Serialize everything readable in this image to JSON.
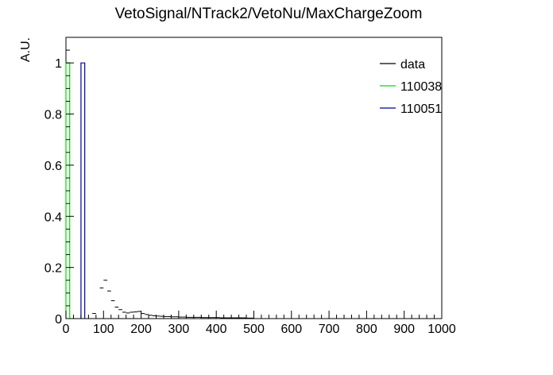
{
  "chart_data": {
    "type": "histogram",
    "title": "VetoSignal/NTrack2/VetoNu/MaxChargeZoom",
    "xlabel": "",
    "ylabel": "A.U.",
    "xlim": [
      0,
      1000
    ],
    "ylim": [
      0,
      1.1
    ],
    "bin_width": 10,
    "x_ticks": [
      0,
      100,
      200,
      300,
      400,
      500,
      600,
      700,
      800,
      900,
      1000
    ],
    "x_tick_labels": [
      "0",
      "100",
      "200",
      "300",
      "400",
      "500",
      "600",
      "700",
      "800",
      "900",
      "1000"
    ],
    "y_ticks": [
      0,
      0.2,
      0.4,
      0.6,
      0.8,
      1
    ],
    "y_tick_labels": [
      "0",
      "0.2",
      "0.4",
      "0.6",
      "0.8",
      "1"
    ],
    "grid": false,
    "legend_position": "top-right",
    "series": [
      {
        "name": "data",
        "style": "markers",
        "color": "#000000",
        "x": [
          5,
          15,
          25,
          35,
          45,
          55,
          65,
          75,
          85,
          95,
          105,
          115,
          125,
          135,
          145,
          155,
          165,
          175,
          185,
          195,
          205,
          215,
          225,
          235,
          245,
          255,
          265,
          275,
          285,
          295,
          305,
          315,
          325,
          335,
          345,
          355,
          365,
          375,
          385,
          395,
          405,
          415,
          425,
          435,
          445,
          455,
          465,
          475,
          485,
          495
        ],
        "y": [
          1.0,
          0.0,
          0.0,
          0.0,
          0.0,
          0.0,
          0.0,
          0.02,
          0.0,
          0.12,
          0.15,
          0.108,
          0.07,
          0.045,
          0.035,
          0.025,
          0.022,
          0.025,
          0.026,
          0.028,
          0.02,
          0.016,
          0.013,
          0.011,
          0.01,
          0.009,
          0.008,
          0.008,
          0.007,
          0.007,
          0.006,
          0.006,
          0.005,
          0.005,
          0.005,
          0.005,
          0.004,
          0.004,
          0.004,
          0.004,
          0.004,
          0.003,
          0.003,
          0.003,
          0.003,
          0.003,
          0.003,
          0.003,
          0.002,
          0.002
        ]
      },
      {
        "name": "110038",
        "style": "step",
        "color": "#00dd00",
        "bins": [
          [
            0,
            10,
            1.0
          ]
        ]
      },
      {
        "name": "110051",
        "style": "step",
        "color": "#0000aa",
        "bins": [
          [
            40,
            50,
            1.0
          ]
        ]
      }
    ]
  }
}
